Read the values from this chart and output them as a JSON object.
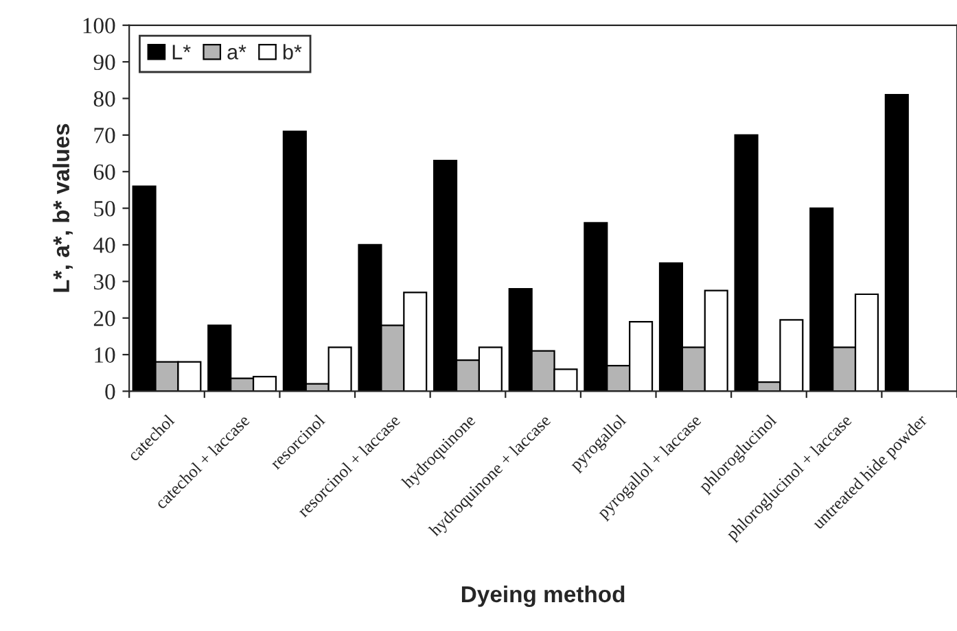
{
  "chart_data": {
    "type": "bar",
    "xlabel": "Dyeing method",
    "ylabel": "L*, a*, b* values",
    "categories": [
      "catechol",
      "catechol + laccase",
      "resorcinol",
      "resorcinol + laccase",
      "hydroquinone",
      "hydroquinone + laccase",
      "pyrogallol",
      "pyrogallol + laccase",
      "phloroglucinol",
      "phloroglucinol + laccase",
      "untreated hide powder"
    ],
    "series": [
      {
        "name": "L*",
        "color": "#000000",
        "values": [
          56,
          18,
          71,
          40,
          63,
          28,
          46,
          35,
          70,
          50,
          81
        ]
      },
      {
        "name": "a*",
        "color": "#b4b4b4",
        "values": [
          8,
          3.5,
          2,
          18,
          8.5,
          11,
          7,
          12,
          2.5,
          12,
          null
        ]
      },
      {
        "name": "b*",
        "color": "#ffffff",
        "values": [
          8,
          4,
          12,
          27,
          12,
          6,
          19,
          27.5,
          19.5,
          26.5,
          null
        ]
      }
    ],
    "ylim": [
      0,
      100
    ],
    "yticks": [
      0,
      10,
      20,
      30,
      40,
      50,
      60,
      70,
      80,
      90,
      100
    ],
    "grid": false,
    "legend": "top left"
  }
}
